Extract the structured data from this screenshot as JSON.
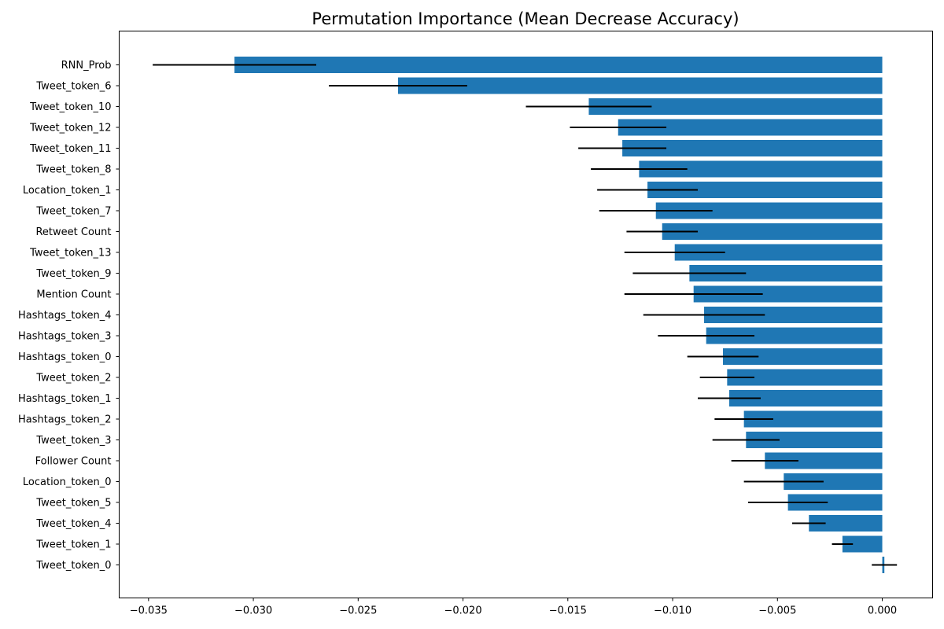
{
  "chart_data": {
    "type": "bar",
    "orientation": "horizontal",
    "title": "Permutation Importance (Mean Decrease Accuracy)",
    "xlabel": "",
    "ylabel": "",
    "xlim": [
      -0.0364,
      0.0024
    ],
    "xticks": [
      -0.035,
      -0.03,
      -0.025,
      -0.02,
      -0.015,
      -0.01,
      -0.005,
      0.0
    ],
    "xtick_labels": [
      "−0.035",
      "−0.030",
      "−0.025",
      "−0.020",
      "−0.015",
      "−0.010",
      "−0.005",
      "0.000"
    ],
    "grid": false,
    "legend": "none",
    "bar_color": "#1f77b4",
    "error_bar_color": "#000000",
    "categories": [
      "RNN_Prob",
      "Tweet_token_6",
      "Tweet_token_10",
      "Tweet_token_12",
      "Tweet_token_11",
      "Tweet_token_8",
      "Location_token_1",
      "Tweet_token_7",
      "Retweet Count",
      "Tweet_token_13",
      "Tweet_token_9",
      "Mention Count",
      "Hashtags_token_4",
      "Hashtags_token_3",
      "Hashtags_token_0",
      "Tweet_token_2",
      "Hashtags_token_1",
      "Hashtags_token_2",
      "Tweet_token_3",
      "Follower Count",
      "Location_token_0",
      "Tweet_token_5",
      "Tweet_token_4",
      "Tweet_token_1",
      "Tweet_token_0"
    ],
    "values": [
      -0.0309,
      -0.0231,
      -0.014,
      -0.0126,
      -0.0124,
      -0.0116,
      -0.0112,
      -0.0108,
      -0.0105,
      -0.0099,
      -0.0092,
      -0.009,
      -0.0085,
      -0.0084,
      -0.0076,
      -0.0074,
      -0.0073,
      -0.0066,
      -0.0065,
      -0.0056,
      -0.0047,
      -0.0045,
      -0.0035,
      -0.0019,
      0.0001
    ],
    "errors": [
      0.0039,
      0.0033,
      0.003,
      0.0023,
      0.0021,
      0.0023,
      0.0024,
      0.0027,
      0.0017,
      0.0024,
      0.0027,
      0.0033,
      0.0029,
      0.0023,
      0.0017,
      0.0013,
      0.0015,
      0.0014,
      0.0016,
      0.0016,
      0.0019,
      0.0019,
      0.0008,
      0.0005,
      0.0006
    ]
  }
}
